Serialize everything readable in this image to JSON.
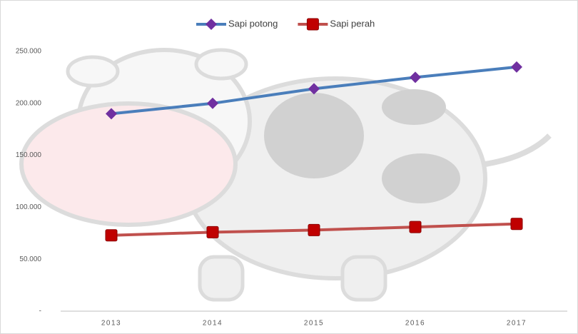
{
  "chart_data": {
    "type": "line",
    "categories": [
      "2013",
      "2014",
      "2015",
      "2016",
      "2017"
    ],
    "series": [
      {
        "name": "Sapi potong",
        "color": "#4a7ebb",
        "marker": "diamond",
        "marker_color": "#7030a0",
        "values": [
          190000,
          200000,
          214000,
          225000,
          235000
        ]
      },
      {
        "name": "Sapi perah",
        "color": "#c0504d",
        "marker": "square",
        "marker_color": "#c00000",
        "values": [
          73000,
          76000,
          78000,
          81000,
          84000
        ]
      }
    ],
    "ylim": [
      0,
      250000
    ],
    "yticks": [
      {
        "value": 0,
        "label": "-"
      },
      {
        "value": 50000,
        "label": "50.000"
      },
      {
        "value": 100000,
        "label": "100.000"
      },
      {
        "value": 150000,
        "label": "150.000"
      },
      {
        "value": 200000,
        "label": "200.000"
      },
      {
        "value": 250000,
        "label": "250.000"
      }
    ],
    "grid": false,
    "legend": "top"
  }
}
